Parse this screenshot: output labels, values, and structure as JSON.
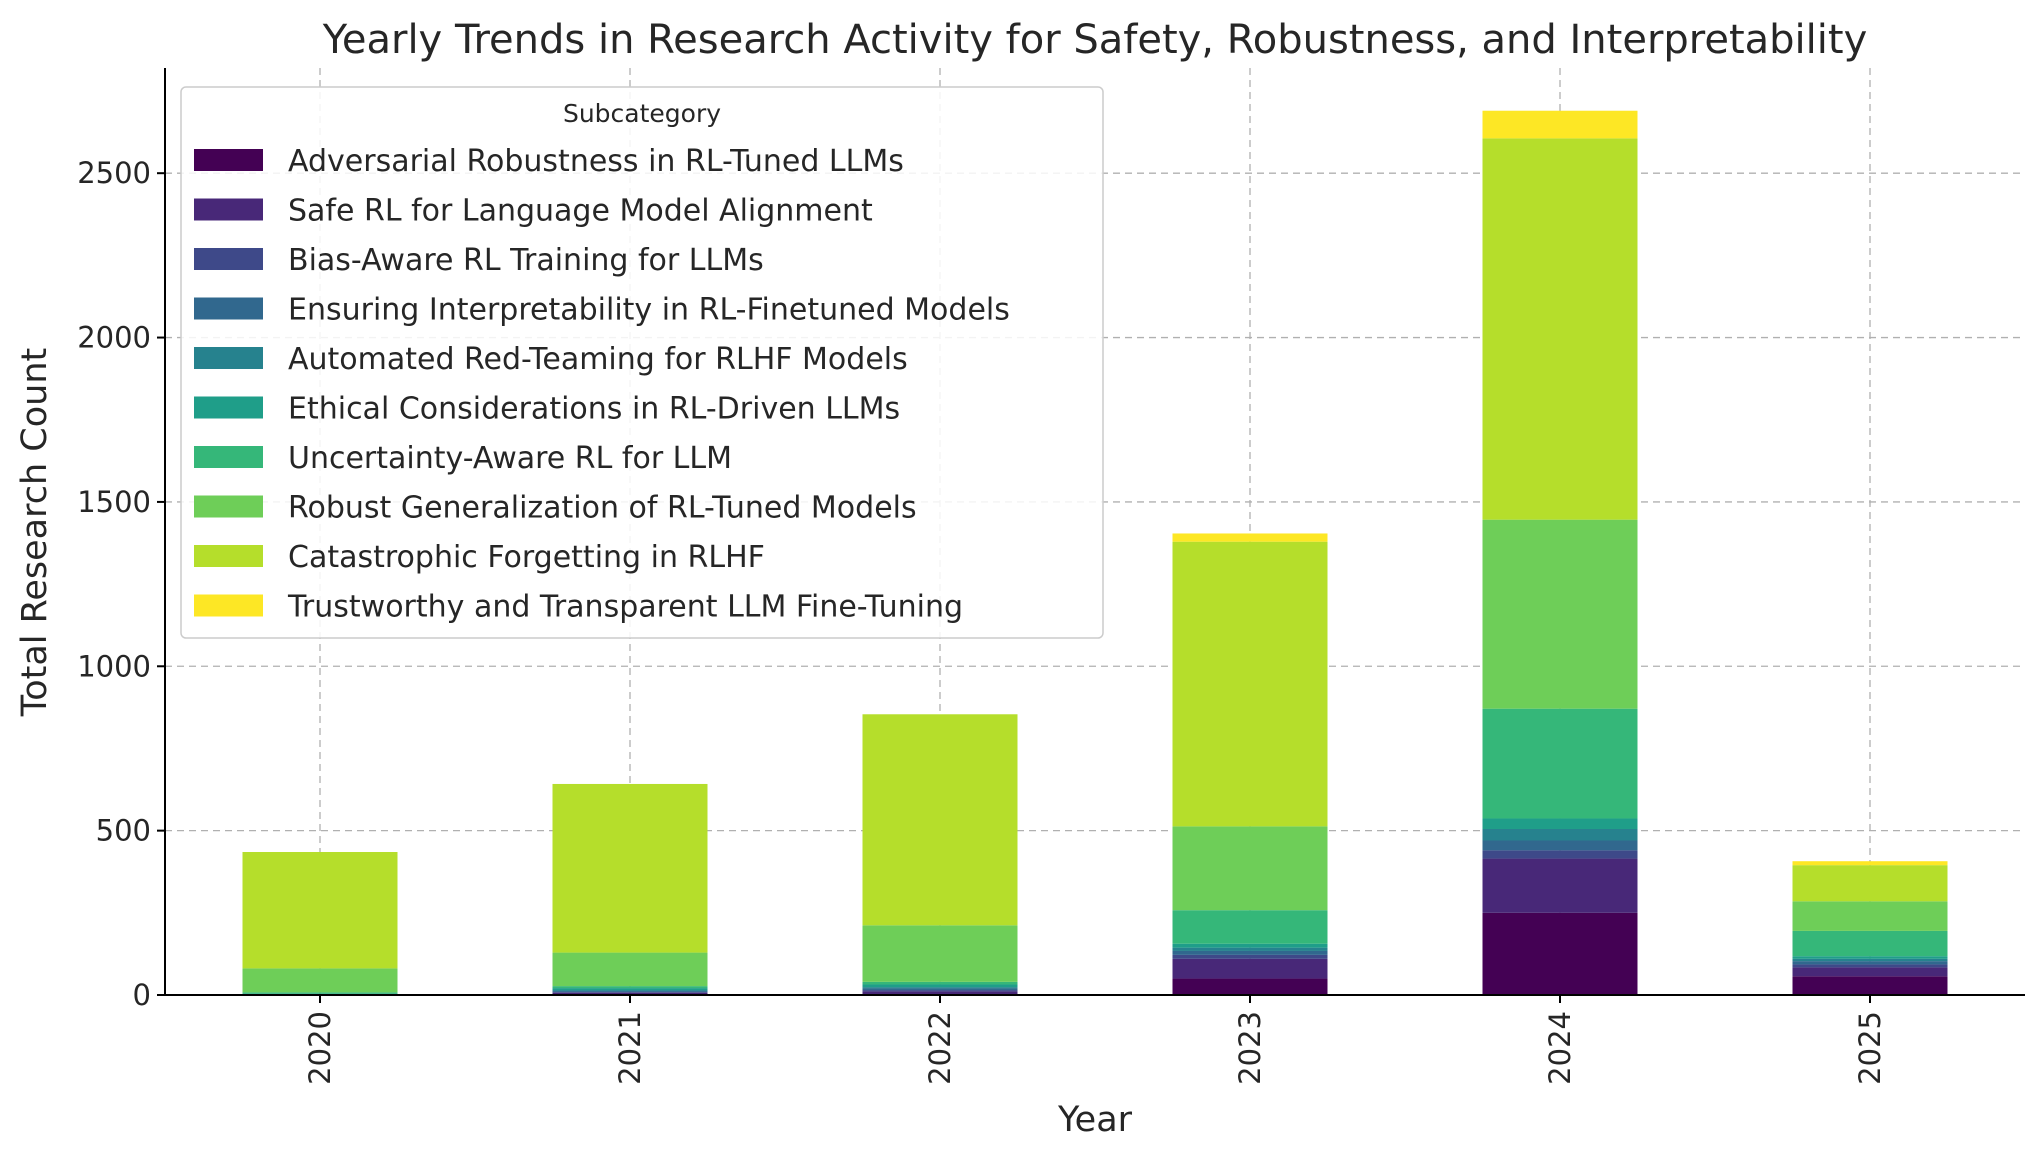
{
  "chart_data": {
    "type": "bar",
    "stacked": true,
    "title": "Yearly Trends in Research Activity for Safety, Robustness, and Interpretability",
    "xlabel": "Year",
    "ylabel": "Total Research Count",
    "ylim": [
      0,
      2820
    ],
    "yticks": [
      0,
      500,
      1000,
      1500,
      2000,
      2500
    ],
    "grid": true,
    "legend_title": "Subcategory",
    "legend_position": "top-left",
    "categories": [
      "2020",
      "2021",
      "2022",
      "2023",
      "2024",
      "2025"
    ],
    "series": [
      {
        "name": "Adversarial Robustness in RL-Tuned LLMs",
        "color": "#440154",
        "values": [
          0,
          2,
          3,
          50,
          250,
          57
        ]
      },
      {
        "name": "Safe RL for Language Model Alignment",
        "color": "#482878",
        "values": [
          1,
          5,
          8,
          60,
          165,
          27
        ]
      },
      {
        "name": "Bias-Aware RL Training for LLMs",
        "color": "#3e4989",
        "values": [
          0,
          2,
          4,
          12,
          25,
          9
        ]
      },
      {
        "name": "Ensuring Interpretability in RL-Finetuned Models",
        "color": "#31688e",
        "values": [
          1,
          3,
          5,
          12,
          30,
          10
        ]
      },
      {
        "name": "Automated Red-Teaming for RLHF Models",
        "color": "#26828e",
        "values": [
          0,
          3,
          4,
          10,
          35,
          7
        ]
      },
      {
        "name": "Ethical Considerations in RL-Driven LLMs",
        "color": "#1f9e89",
        "values": [
          2,
          6,
          8,
          12,
          32,
          8
        ]
      },
      {
        "name": "Uncertainty-Aware RL for LLM",
        "color": "#35b779",
        "values": [
          4,
          6,
          8,
          102,
          334,
          77
        ]
      },
      {
        "name": "Robust Generalization of RL-Tuned Models",
        "color": "#6ece58",
        "values": [
          73,
          102,
          172,
          255,
          575,
          90
        ]
      },
      {
        "name": "Catastrophic Forgetting in RLHF",
        "color": "#b5de2b",
        "values": [
          354,
          513,
          642,
          866,
          1160,
          110
        ]
      },
      {
        "name": "Trustworthy and Transparent LLM Fine-Tuning",
        "color": "#fde725",
        "values": [
          0,
          0,
          0,
          25,
          84,
          12
        ]
      }
    ]
  }
}
